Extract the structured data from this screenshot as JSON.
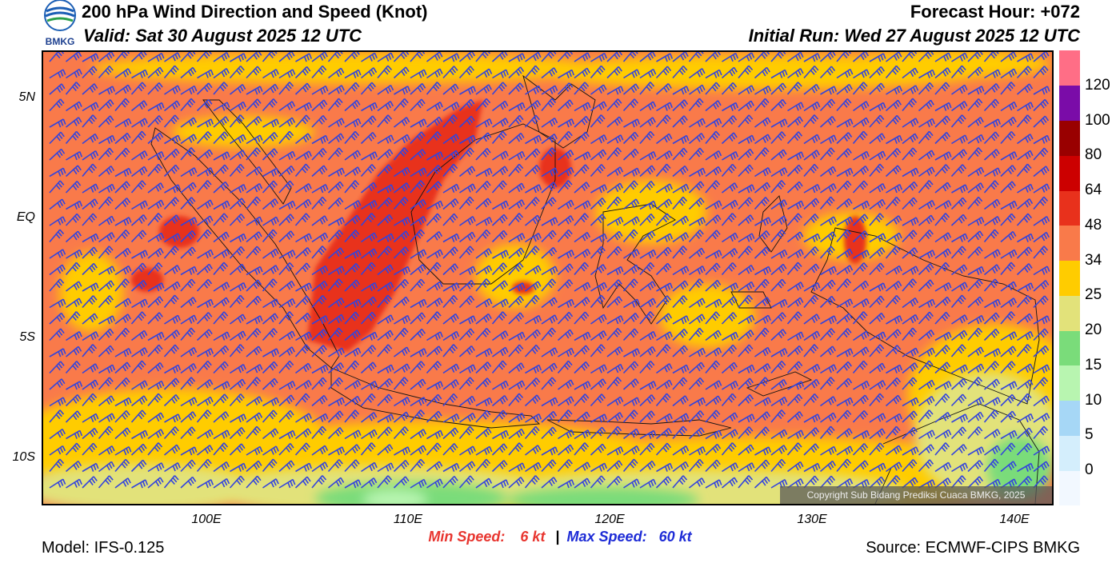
{
  "header": {
    "title": "200 hPa Wind Direction and Speed (Knot)",
    "valid": "Valid: Sat 30 August 2025 12 UTC",
    "forecast_hour": "Forecast Hour: +072",
    "initial_run": "Initial Run: Wed 27 August 2025 12 UTC"
  },
  "logo": {
    "text": "BMKG",
    "icon": "bmkg-logo-icon"
  },
  "map": {
    "lat_labels": [
      "5N",
      "EQ",
      "5S",
      "10S"
    ],
    "lon_labels": [
      "100E",
      "110E",
      "120E",
      "130E",
      "140E"
    ],
    "lon_range": [
      92,
      142.2
    ],
    "lat_range": [
      7,
      -12
    ],
    "barb_color": "#3344dd",
    "coast_color": "#111111"
  },
  "colorbar": {
    "labels": [
      "0",
      "5",
      "10",
      "15",
      "20",
      "25",
      "34",
      "48",
      "64",
      "80",
      "100",
      "120"
    ],
    "colors": [
      "#f2f8ff",
      "#d4eefc",
      "#a6d7f6",
      "#b8f5b0",
      "#7adc7a",
      "#e2e27a",
      "#ffcc00",
      "#f97a4a",
      "#e8311c",
      "#cc0000",
      "#990000",
      "#7a0ca8",
      "#ff6e86"
    ]
  },
  "speeds": {
    "min_label": "Min Speed:",
    "min_value": "6 kt",
    "separator": "|",
    "max_label": "Max Speed:",
    "max_value": "60 kt"
  },
  "footer": {
    "model": "Model: IFS-0.125",
    "source": "Source: ECMWF-CIPS BMKG",
    "copyright": "Copyright Sub Bidang Prediksi Cuaca BMKG, 2025"
  }
}
